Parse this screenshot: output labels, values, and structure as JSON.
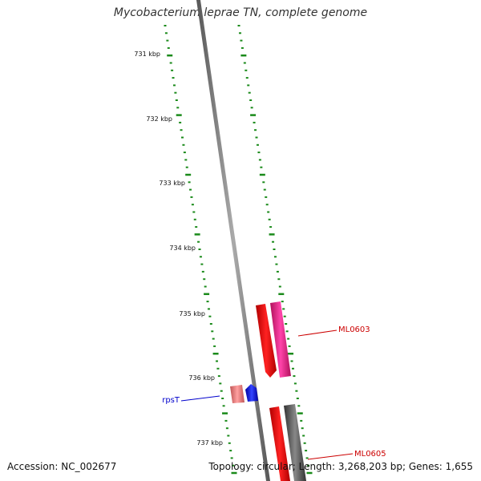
{
  "title": "Mycobacterium leprae TN, complete genome",
  "footer": {
    "accession": "Accession: NC_002677",
    "summary": "Topology: circular; Length: 3,268,203 bp; Genes: 1,655"
  },
  "ticks": {
    "inner_labels": [
      "731 kbp",
      "732 kbp",
      "733 kbp",
      "734 kbp",
      "735 kbp",
      "736 kbp",
      "737 kbp"
    ],
    "tick_color": "#1a8a1a"
  },
  "genes": [
    {
      "name": "ML0603",
      "color": "#cc0000"
    },
    {
      "name": "rpsT",
      "color": "#0000cc"
    },
    {
      "name": "ML0605",
      "color": "#cc0000"
    }
  ],
  "colors": {
    "backbone": "#777777",
    "red_gene": "#ff0000",
    "pink_gene": "#ff3399",
    "light_red_gene": "#f08080",
    "blue_gene": "#0000ff",
    "gray_gene": "#666666"
  }
}
